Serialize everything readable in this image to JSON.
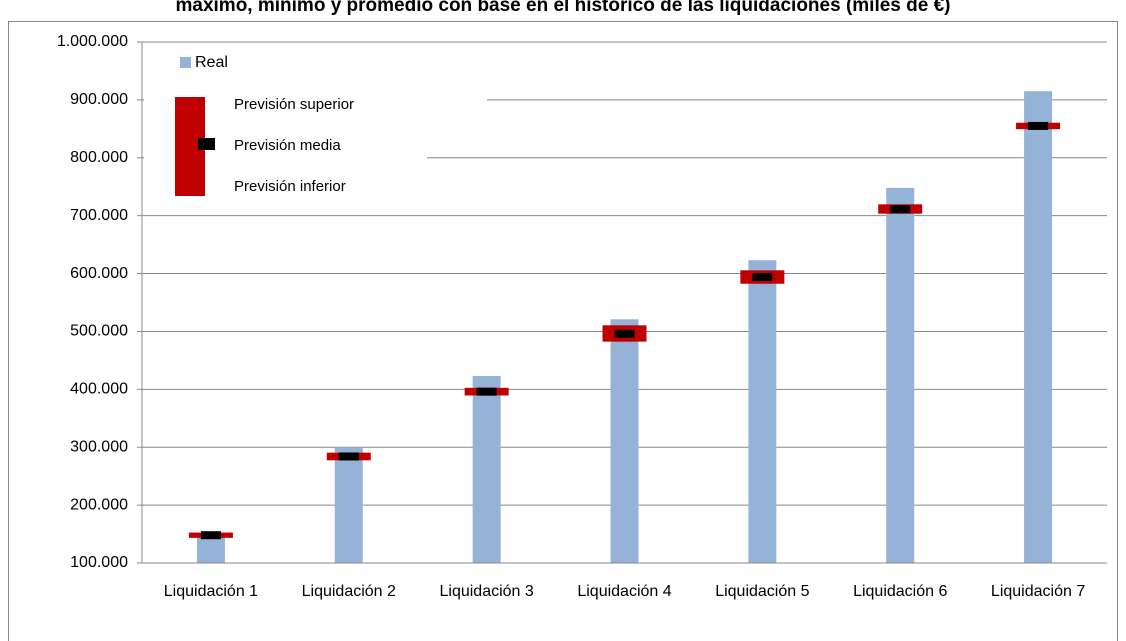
{
  "chart_data": {
    "type": "bar",
    "title": "máximo, mínimo y promedio con base en el histórico de las liquidaciones (miles de €)",
    "categories": [
      "Liquidación 1",
      "Liquidación 2",
      "Liquidación 3",
      "Liquidación 4",
      "Liquidación 5",
      "Liquidación 6",
      "Liquidación 7"
    ],
    "series": [
      {
        "name": "Real",
        "color": "#95b3d7",
        "values": [
          152000,
          300000,
          423000,
          521000,
          623000,
          748000,
          915000
        ]
      },
      {
        "name": "Previsión superior",
        "color": "#c00000",
        "values": [
          150000,
          288000,
          400000,
          508000,
          603000,
          717000,
          858000
        ]
      },
      {
        "name": "Previsión media",
        "color": "#000000",
        "values": [
          148000,
          284000,
          396000,
          496000,
          594000,
          711000,
          855000
        ]
      },
      {
        "name": "Previsión inferior",
        "color": "#c00000",
        "values": [
          146000,
          280000,
          392000,
          485000,
          585000,
          706000,
          852000
        ]
      }
    ],
    "ylim": [
      100000,
      1000000
    ],
    "yticks": [
      {
        "value": 100000,
        "label": "100.000"
      },
      {
        "value": 200000,
        "label": "200.000"
      },
      {
        "value": 300000,
        "label": "300.000"
      },
      {
        "value": 400000,
        "label": "400.000"
      },
      {
        "value": 500000,
        "label": "500.000"
      },
      {
        "value": 600000,
        "label": "600.000"
      },
      {
        "value": 700000,
        "label": "700.000"
      },
      {
        "value": 800000,
        "label": "800.000"
      },
      {
        "value": 900000,
        "label": "900.000"
      },
      {
        "value": 1000000,
        "label": "1.000.000"
      }
    ],
    "grid": true
  }
}
